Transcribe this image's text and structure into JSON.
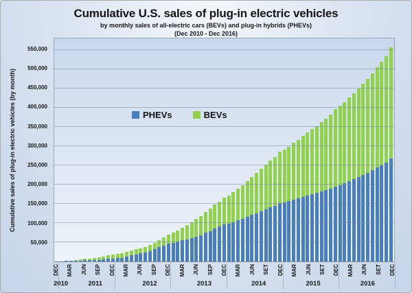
{
  "header": {
    "title": "Cumulative U.S. sales of plug-in electric vehicles",
    "subtitle": "by monthly sales of all-electric cars (BEVs) and plug-in hybrids (PHEVs)",
    "period": "(Dec 2010 - Dec 2016)"
  },
  "y_axis_title": "Cumulative sales of plug-in electric vehicles (by month)",
  "legend": [
    {
      "label": "PHEVs",
      "color": "#4a7ebb"
    },
    {
      "label": "BEVs",
      "color": "#92d050"
    }
  ],
  "colors": {
    "phev": "#4a7ebb",
    "bev": "#92d050",
    "gridline": "rgba(118,132,153,0.5)",
    "background_top": "#f6f9fd",
    "background_bottom": "#c6d5e9"
  },
  "chart_data": {
    "type": "bar",
    "stacked": true,
    "title": "Cumulative U.S. sales of plug-in electric vehicles",
    "xlabel": "",
    "ylabel": "Cumulative sales of plug-in electric vehicles (by month)",
    "ymax": 580000,
    "grid": true,
    "legend_position": "inside upper-left of plot",
    "y_ticks": [
      50000,
      100000,
      150000,
      200000,
      250000,
      300000,
      350000,
      400000,
      450000,
      500000,
      550000
    ],
    "y_tick_labels": [
      "50,000",
      "100,000",
      "150,000",
      "200,000",
      "250,000",
      "300,000",
      "350,000",
      "400,000",
      "450,000",
      "500,000",
      "550,000"
    ],
    "x_tick_every": 3,
    "x_tick_labels": [
      "DEC",
      "MAR",
      "JUN",
      "SEP",
      "DEC",
      "MAR",
      "JUN",
      "SEP",
      "DEC",
      "MAR",
      "JUN",
      "SEP",
      "DEC",
      "MAR",
      "JUN",
      "SET",
      "DEC",
      "MAR",
      "JUN",
      "SET",
      "DEC",
      "MAR",
      "JUN",
      "SET",
      "DEC"
    ],
    "year_groups": [
      {
        "label": "2010",
        "months": 1
      },
      {
        "label": "2011",
        "months": 12
      },
      {
        "label": "2012",
        "months": 12
      },
      {
        "label": "2013",
        "months": 12
      },
      {
        "label": "2014",
        "months": 12
      },
      {
        "label": "2015",
        "months": 12
      },
      {
        "label": "2016",
        "months": 12
      }
    ],
    "months": [
      "Dec 2010",
      "Jan 2011",
      "Feb 2011",
      "Mar 2011",
      "Apr 2011",
      "May 2011",
      "Jun 2011",
      "Jul 2011",
      "Aug 2011",
      "Sep 2011",
      "Oct 2011",
      "Nov 2011",
      "Dec 2011",
      "Jan 2012",
      "Feb 2012",
      "Mar 2012",
      "Apr 2012",
      "May 2012",
      "Jun 2012",
      "Jul 2012",
      "Aug 2012",
      "Sep 2012",
      "Oct 2012",
      "Nov 2012",
      "Dec 2012",
      "Jan 2013",
      "Feb 2013",
      "Mar 2013",
      "Apr 2013",
      "May 2013",
      "Jun 2013",
      "Jul 2013",
      "Aug 2013",
      "Sep 2013",
      "Oct 2013",
      "Nov 2013",
      "Dec 2013",
      "Jan 2014",
      "Feb 2014",
      "Mar 2014",
      "Apr 2014",
      "May 2014",
      "Jun 2014",
      "Jul 2014",
      "Aug 2014",
      "Sep 2014",
      "Oct 2014",
      "Nov 2014",
      "Dec 2014",
      "Jan 2015",
      "Feb 2015",
      "Mar 2015",
      "Apr 2015",
      "May 2015",
      "Jun 2015",
      "Jul 2015",
      "Aug 2015",
      "Sep 2015",
      "Oct 2015",
      "Nov 2015",
      "Dec 2015",
      "Jan 2016",
      "Feb 2016",
      "Mar 2016",
      "Apr 2016",
      "May 2016",
      "Jun 2016",
      "Jul 2016",
      "Aug 2016",
      "Sep 2016",
      "Oct 2016",
      "Nov 2016",
      "Dec 2016"
    ],
    "series": [
      {
        "name": "PHEVs",
        "color": "#4a7ebb",
        "stack_order": "bottom",
        "values": [
          330,
          650,
          930,
          1540,
          2030,
          2510,
          3070,
          3200,
          3500,
          4220,
          5330,
          6470,
          8000,
          8600,
          9630,
          12810,
          15930,
          18690,
          21150,
          23680,
          27560,
          32060,
          37060,
          41600,
          46570,
          48970,
          51770,
          54870,
          57570,
          60770,
          64970,
          68470,
          74870,
          79370,
          85670,
          90570,
          95570,
          98570,
          102170,
          106770,
          111170,
          116370,
          121270,
          125770,
          131170,
          135470,
          140470,
          144870,
          150970,
          153670,
          156770,
          160670,
          164270,
          168070,
          171470,
          174470,
          177670,
          181270,
          185070,
          189070,
          193970,
          197970,
          202770,
          208370,
          214070,
          219470,
          225070,
          230770,
          236870,
          243670,
          250570,
          257870,
          266870
        ]
      },
      {
        "name": "BEVs",
        "color": "#92d050",
        "stack_order": "top",
        "values": [
          20,
          110,
          170,
          470,
          1040,
          2190,
          3890,
          4830,
          6190,
          7220,
          8070,
          8740,
          9690,
          10420,
          10950,
          11600,
          12050,
          12650,
          13270,
          13770,
          14620,
          15920,
          18070,
          20520,
          23070,
          25320,
          27870,
          32720,
          37270,
          41620,
          46170,
          50020,
          54320,
          58070,
          61870,
          65570,
          70370,
          73670,
          77370,
          82070,
          86770,
          92270,
          98170,
          103870,
          110170,
          115770,
          121270,
          126570,
          133770,
          137470,
          141670,
          147670,
          152470,
          157770,
          163970,
          169170,
          174570,
          181170,
          186770,
          192570,
          202070,
          206370,
          211570,
          218170,
          223670,
          229670,
          237670,
          244170,
          251570,
          261070,
          268070,
          276270,
          290770
        ]
      }
    ]
  }
}
